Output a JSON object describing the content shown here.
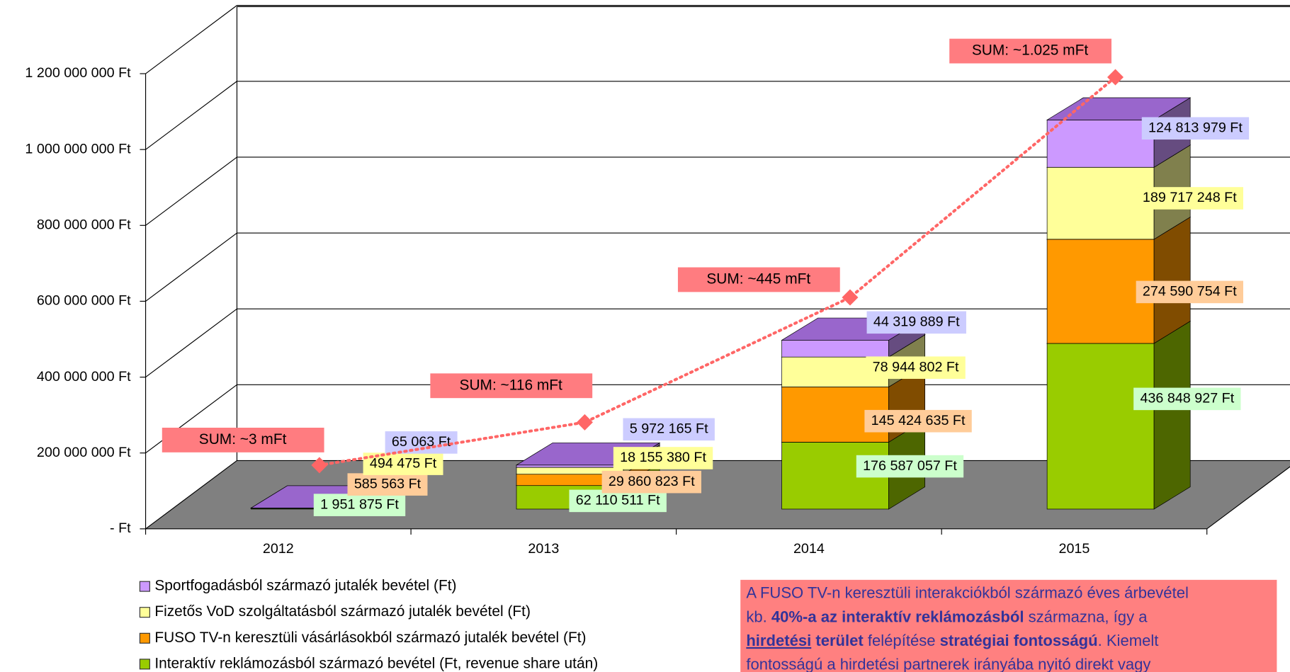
{
  "chart_data": {
    "type": "bar3d_stacked",
    "categories": [
      "2012",
      "2013",
      "2014",
      "2015"
    ],
    "series": [
      {
        "name": "Interaktív reklámozásból származó bevétel (Ft, revenue share után)",
        "color": "#99cc00",
        "side_color": "#4d6600",
        "label_color": "#ccffcc",
        "values": [
          1951875,
          62110511,
          176587057,
          436848927
        ],
        "value_labels": [
          "1 951 875 Ft",
          "62 110 511 Ft",
          "176 587 057 Ft",
          "436 848 927 Ft"
        ]
      },
      {
        "name": "FUSO TV-n keresztüli vásárlásokból származó jutalék bevétel (Ft)",
        "color": "#ff9900",
        "side_color": "#804c00",
        "label_color": "#ffcc99",
        "values": [
          585563,
          29860823,
          145424635,
          274590754
        ],
        "value_labels": [
          "585 563 Ft",
          "29 860 823 Ft",
          "145 424 635 Ft",
          "274 590 754 Ft"
        ]
      },
      {
        "name": "Fizetős VoD szolgáltatásból származó jutalék bevétel (Ft)",
        "color": "#ffff99",
        "side_color": "#80804d",
        "label_color": "#ffff99",
        "values": [
          494475,
          18155380,
          78944802,
          189717248
        ],
        "value_labels": [
          "494 475 Ft",
          "18 155 380 Ft",
          "78 944 802 Ft",
          "189 717 248 Ft"
        ]
      },
      {
        "name": "Sportfogadásból származó jutalék bevétel (Ft)",
        "color": "#cc99ff",
        "side_color": "#664c80",
        "top_color": "#9966cc",
        "label_color": "#ccccff",
        "values": [
          65063,
          5972165,
          44319889,
          124813979
        ],
        "value_labels": [
          "65 063 Ft",
          "5 972 165 Ft",
          "44 319 889 Ft",
          "124 813 979 Ft"
        ]
      }
    ],
    "sum_line": {
      "color": "#ff6666",
      "label_color": "#ff7c80",
      "values": [
        3096976,
        116098879,
        445276383,
        1025970908
      ],
      "value_labels": [
        "SUM: ~3 mFt",
        "SUM: ~116 mFt",
        "SUM: ~445 mFt",
        "SUM: ~1.025 mFt"
      ]
    },
    "ylim": [
      0,
      1200000000
    ],
    "yticks": [
      {
        "value": 0,
        "label": "- Ft"
      },
      {
        "value": 200000000,
        "label": "200 000 000 Ft"
      },
      {
        "value": 400000000,
        "label": "400 000 000 Ft"
      },
      {
        "value": 600000000,
        "label": "600 000 000 Ft"
      },
      {
        "value": 800000000,
        "label": "800 000 000 Ft"
      },
      {
        "value": 1000000000,
        "label": "1 000 000 000 Ft"
      },
      {
        "value": 1200000000,
        "label": "1 200 000 000 Ft"
      }
    ],
    "grid": true,
    "legend": "bottom-left"
  },
  "note": {
    "lines": [
      [
        {
          "text": "A FUSO TV-n keresztüli interakciókból származó éves árbevétel"
        }
      ],
      [
        {
          "text": "kb. "
        },
        {
          "text": "40%-a az interaktív reklámozásból",
          "bold": true
        },
        {
          "text": " származna, így a"
        }
      ],
      [
        {
          "text": "hirdetési",
          "bold": true,
          "underline": true
        },
        {
          "text": " terület",
          "bold": true
        },
        {
          "text": " felépítése "
        },
        {
          "text": "stratégiai fontosságú",
          "bold": true
        },
        {
          "text": ". Kiemelt"
        }
      ],
      [
        {
          "text": "fontosságú a hirdetési partnerek irányába nyitó direkt vagy"
        }
      ]
    ]
  }
}
